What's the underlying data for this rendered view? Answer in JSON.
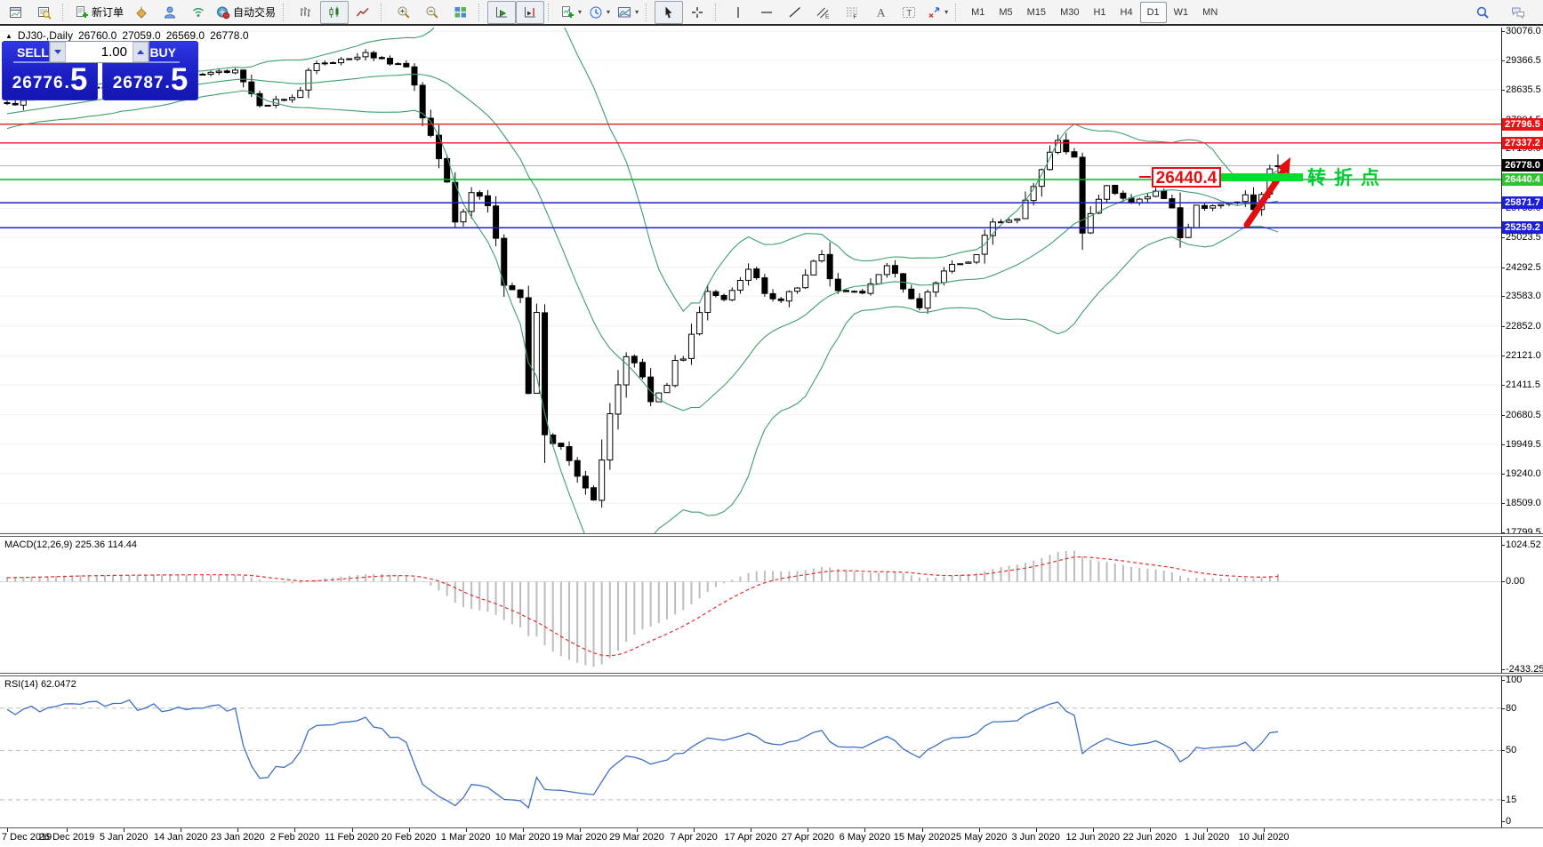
{
  "title": {
    "symbol": "DJ30-,Daily",
    "open": "26760.0",
    "high": "27059.0",
    "low": "26569.0",
    "close": "26778.0"
  },
  "toolbar": {
    "groups": [
      {
        "name": "windows",
        "items": [
          {
            "name": "chart-window-button",
            "icon": "chart-window-icon"
          },
          {
            "name": "data-window-button",
            "icon": "data-window-icon"
          }
        ]
      },
      {
        "name": "trading",
        "items": [
          {
            "name": "new-order-button",
            "icon": "new-order-icon",
            "label": "新订单"
          },
          {
            "name": "style-bucket-button",
            "icon": "style-bucket-icon"
          },
          {
            "name": "community-button",
            "icon": "community-icon"
          },
          {
            "name": "signals-button",
            "icon": "signals-icon"
          },
          {
            "name": "autotrade-button",
            "icon": "autotrade-icon",
            "label": "自动交易"
          }
        ]
      },
      {
        "name": "chart-type",
        "items": [
          {
            "name": "bar-chart-button",
            "icon": "bar-chart-icon"
          },
          {
            "name": "candlestick-button",
            "icon": "candlestick-icon",
            "pressed": true
          },
          {
            "name": "line-chart-button",
            "icon": "line-chart-icon"
          }
        ]
      },
      {
        "name": "zooming",
        "items": [
          {
            "name": "zoom-in-button",
            "icon": "zoom-in-icon"
          },
          {
            "name": "zoom-out-button",
            "icon": "zoom-out-icon"
          },
          {
            "name": "tile-windows-button",
            "icon": "tile-windows-icon"
          }
        ]
      },
      {
        "name": "scrolling",
        "items": [
          {
            "name": "autoscroll-button",
            "icon": "autoscroll-icon",
            "pressed": true
          },
          {
            "name": "chart-shift-button",
            "icon": "chart-shift-icon",
            "pressed": true
          }
        ]
      },
      {
        "name": "insert",
        "items": [
          {
            "name": "indicators-button",
            "icon": "indicators-icon",
            "caret": true
          },
          {
            "name": "periods-button",
            "icon": "periods-icon",
            "caret": true
          },
          {
            "name": "template-button",
            "icon": "template-icon",
            "caret": true
          }
        ]
      },
      {
        "name": "pointer",
        "items": [
          {
            "name": "cursor-button",
            "icon": "cursor-icon",
            "pressed": true
          },
          {
            "name": "crosshair-button",
            "icon": "crosshair-icon"
          }
        ]
      },
      {
        "name": "objects",
        "items": [
          {
            "name": "vertical-line-button",
            "icon": "vertical-line-icon"
          },
          {
            "name": "horizontal-line-button",
            "icon": "horizontal-line-icon"
          },
          {
            "name": "trendline-button",
            "icon": "trendline-icon"
          },
          {
            "name": "equidistant-channel-button",
            "icon": "equidistant-channel-icon"
          },
          {
            "name": "fibonacci-button",
            "icon": "fibonacci-icon"
          },
          {
            "name": "text-button",
            "icon": "text-icon"
          },
          {
            "name": "text-label-button",
            "icon": "text-label-icon"
          },
          {
            "name": "arrows-button",
            "icon": "arrows-icon",
            "caret": true
          }
        ]
      }
    ],
    "timeframes": [
      "M1",
      "M5",
      "M15",
      "M30",
      "H1",
      "H4",
      "D1",
      "W1",
      "MN"
    ],
    "active_timeframe": "D1",
    "right_items": [
      {
        "name": "search-button",
        "icon": "search-icon"
      },
      {
        "name": "chat-button",
        "icon": "chat-icon"
      }
    ]
  },
  "trade_panel": {
    "sell_label": "SELL",
    "buy_label": "BUY",
    "volume": "1.00",
    "sell_price": {
      "main": "26776",
      "sep": ".",
      "big": "5"
    },
    "buy_price": {
      "main": "26787",
      "sep": ".",
      "big": "5"
    }
  },
  "colors": {
    "up_candle": "#ffffff",
    "down_candle": "#000000",
    "candle_outline": "#000000",
    "bollinger": "#3f9e6e",
    "grid": "#f0f0f0",
    "bid_line": "#b4b4b4",
    "macd_histogram": "#bdbdbd",
    "macd_signal": "#e03030",
    "rsi_line": "#3e6fc4",
    "level_red": "#e02020",
    "level_blue": "#2121cc",
    "level_green": "#00b830",
    "badge_red": "#e81414",
    "badge_blue": "#1d1de0",
    "badge_green": "#2cc52c",
    "badge_black": "#000000",
    "annotation_red": "#e01010",
    "annotation_green": "#00cc33",
    "trade_blue": "#1b1fc4"
  },
  "chart_data": {
    "type": "candlestick-ohlc",
    "symbol": "DJ30",
    "timeframe": "Daily",
    "num_candles": 157,
    "visible_price_range": [
      17799.5,
      30076.0
    ],
    "candle_anchors": [
      [
        0,
        28300
      ],
      [
        7,
        28620
      ],
      [
        14,
        28750
      ],
      [
        21,
        29000
      ],
      [
        28,
        29120
      ],
      [
        31,
        28250
      ],
      [
        35,
        28450
      ],
      [
        38,
        29280
      ],
      [
        42,
        29400
      ],
      [
        44,
        29551
      ],
      [
        49,
        29200
      ],
      [
        51,
        27950
      ],
      [
        53,
        26950
      ],
      [
        55,
        25400
      ],
      [
        57,
        26120
      ],
      [
        59,
        25800
      ],
      [
        61,
        23850
      ],
      [
        63,
        23550
      ],
      [
        64,
        21200
      ],
      [
        65,
        23185
      ],
      [
        66,
        20188
      ],
      [
        68,
        19898
      ],
      [
        70,
        19173
      ],
      [
        72,
        18591
      ],
      [
        74,
        20704
      ],
      [
        76,
        22100
      ],
      [
        77,
        21950
      ],
      [
        79,
        21000
      ],
      [
        81,
        21400
      ],
      [
        84,
        22650
      ],
      [
        86,
        23700
      ],
      [
        88,
        23500
      ],
      [
        91,
        24242
      ],
      [
        93,
        23650
      ],
      [
        95,
        23475
      ],
      [
        98,
        24100
      ],
      [
        100,
        24600
      ],
      [
        102,
        23720
      ],
      [
        105,
        23660
      ],
      [
        108,
        24330
      ],
      [
        110,
        23760
      ],
      [
        112,
        23300
      ],
      [
        115,
        24200
      ],
      [
        119,
        24600
      ],
      [
        121,
        25400
      ],
      [
        124,
        25475
      ],
      [
        126,
        26270
      ],
      [
        128,
        27110
      ],
      [
        129,
        27400
      ],
      [
        131,
        26990
      ],
      [
        132,
        25128
      ],
      [
        133,
        25605
      ],
      [
        135,
        26290
      ],
      [
        138,
        25871
      ],
      [
        141,
        26156
      ],
      [
        143,
        25745
      ],
      [
        144,
        25015
      ],
      [
        146,
        25812
      ],
      [
        147,
        25734
      ],
      [
        149,
        25827
      ],
      [
        151,
        25890
      ],
      [
        152,
        26067
      ],
      [
        153,
        25706
      ],
      [
        154,
        26075
      ],
      [
        155,
        26700
      ],
      [
        156,
        26778
      ]
    ],
    "last_candle_ohlc": [
      26760.0,
      27059.0,
      26569.0,
      26778.0
    ],
    "bollinger": {
      "period": 20,
      "deviation": 2
    },
    "macd": {
      "label": "MACD(12,26,9) 225.36 114.44",
      "fast": 12,
      "slow": 26,
      "signal": 9,
      "value_main": 225.36,
      "value_signal": 114.44,
      "axis_ticks": [
        "1024.52",
        "0.00",
        "-2433.25"
      ]
    },
    "rsi": {
      "label": "RSI(14) 62.0472",
      "period": 14,
      "value": 62.0472,
      "axis_ticks": [
        "100",
        "80",
        "50",
        "15",
        "0"
      ],
      "level_lines": [
        80,
        50,
        15
      ]
    },
    "price_axis_ticks": [
      "30076.0",
      "29366.5",
      "28635.5",
      "27904.5",
      "27195.0",
      "26464.0",
      "25733.0",
      "25023.5",
      "24292.5",
      "23583.0",
      "22852.0",
      "22121.0",
      "21411.5",
      "20680.5",
      "19949.5",
      "19240.0",
      "18509.0",
      "17799.5"
    ],
    "hlines": [
      {
        "value": 27796.5,
        "label": "27796.5",
        "color": "red"
      },
      {
        "value": 27337.2,
        "label": "27337.2",
        "color": "red"
      },
      {
        "value": 26440.4,
        "label": "26440.4",
        "color": "green"
      },
      {
        "value": 25871.7,
        "label": "25871.7",
        "color": "blue"
      },
      {
        "value": 25259.2,
        "label": "25259.2",
        "color": "blue"
      }
    ],
    "bid_line": {
      "value": 26778.0,
      "label": "26778.0"
    },
    "annotation": {
      "price_label": "26440.4",
      "note": "转折点"
    },
    "time_axis_labels": [
      "7 Dec 2019",
      "26 Dec 2019",
      "5 Jan 2020",
      "14 Jan 2020",
      "23 Jan 2020",
      "2 Feb 2020",
      "11 Feb 2020",
      "20 Feb 2020",
      "1 Mar 2020",
      "10 Mar 2020",
      "19 Mar 2020",
      "29 Mar 2020",
      "7 Apr 2020",
      "17 Apr 2020",
      "27 Apr 2020",
      "6 May 2020",
      "15 May 2020",
      "25 May 2020",
      "3 Jun 2020",
      "12 Jun 2020",
      "22 Jun 2020",
      "1 Jul 2020",
      "10 Jul 2020"
    ]
  }
}
